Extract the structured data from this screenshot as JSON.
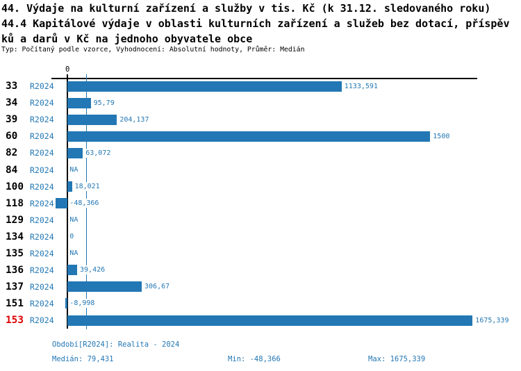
{
  "title": {
    "line1": "44. Výdaje na kulturní zařízení a služby v tis. Kč (k 31.12. sledovaného roku)",
    "line2": "44.4 Kapitálové výdaje v oblasti kulturních zařízení a služeb bez dotací, příspěv",
    "line3": "ků a darů v Kč na jednoho obyvatele obce",
    "meta": "Typ: Počítaný podle vzorce, Vyhodnocení: Absolutní hodnoty, Průměr: Medián"
  },
  "chart_data": {
    "type": "bar",
    "orientation": "horizontal",
    "title": "44.4 Kapitálové výdaje v oblasti kulturních zařízení a služeb bez dotací, příspěvků a darů v Kč na jednoho obyvatele obce",
    "categories": [
      "33",
      "34",
      "39",
      "60",
      "82",
      "84",
      "100",
      "118",
      "129",
      "134",
      "135",
      "136",
      "137",
      "151",
      "153"
    ],
    "series_label": "R2024",
    "values": [
      1133.591,
      95.79,
      204.137,
      1500,
      63.072,
      null,
      18.021,
      -48.366,
      null,
      0,
      null,
      39.426,
      306.67,
      -8.998,
      1675.339
    ],
    "value_labels": [
      "1133,591",
      "95,79",
      "204,137",
      "1500",
      "63,072",
      "NA",
      "18,021",
      "-48,366",
      "NA",
      "0",
      "NA",
      "39,426",
      "306,67",
      "-8,998",
      "1675,339"
    ],
    "axis_zero_label": "0",
    "xlim": [
      -48.366,
      1675.339
    ],
    "median_value": 79.431,
    "highlighted_category": "153",
    "grid": false,
    "legend": "none",
    "colors": {
      "bar": "#2277b4",
      "median_line": "#2277b4",
      "series_text": "#2277b4",
      "value_text": "#2277b4",
      "category_text": "#000000",
      "highlight_text": "#dd0000",
      "axis": "#000000"
    }
  },
  "footer": {
    "period": "Období[R2024]: Realita - 2024",
    "median": "Medián: 79,431",
    "min": "Min: -48,366",
    "max": "Max: 1675,339"
  }
}
